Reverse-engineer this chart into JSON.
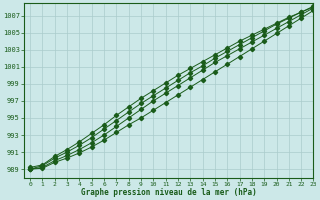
{
  "xlabel": "Graphe pression niveau de la mer (hPa)",
  "xlim": [
    -0.5,
    23
  ],
  "ylim": [
    988.0,
    1008.5
  ],
  "yticks": [
    989,
    991,
    993,
    995,
    997,
    999,
    1001,
    1003,
    1005,
    1007
  ],
  "xticks": [
    0,
    1,
    2,
    3,
    4,
    5,
    6,
    7,
    8,
    9,
    10,
    11,
    12,
    13,
    14,
    15,
    16,
    17,
    18,
    19,
    20,
    21,
    22,
    23
  ],
  "bg_color": "#cce8e8",
  "grid_color": "#aacccc",
  "line_color": "#1a5c1a",
  "line1_x": [
    0,
    1,
    2,
    3,
    4,
    5,
    6,
    7,
    8,
    9,
    10,
    11,
    12,
    13,
    14,
    15,
    16,
    17,
    18,
    19,
    20,
    21,
    22,
    23
  ],
  "line1_y": [
    989.0,
    989.1,
    989.8,
    990.3,
    990.9,
    991.6,
    992.4,
    993.3,
    994.2,
    995.0,
    995.9,
    996.8,
    997.7,
    998.6,
    999.5,
    1000.4,
    1001.3,
    1002.2,
    1003.1,
    1004.0,
    1004.9,
    1005.8,
    1006.7,
    1007.6
  ],
  "line2_x": [
    0,
    1,
    2,
    3,
    4,
    5,
    6,
    7,
    8,
    9,
    10,
    11,
    12,
    13,
    14,
    15,
    16,
    17,
    18,
    19,
    20,
    21,
    22,
    23
  ],
  "line2_y": [
    989.0,
    989.2,
    990.0,
    990.6,
    991.3,
    992.1,
    993.0,
    994.0,
    995.0,
    996.0,
    997.0,
    997.9,
    998.8,
    999.7,
    1000.6,
    1001.5,
    1002.3,
    1003.1,
    1003.9,
    1004.7,
    1005.5,
    1006.3,
    1007.1,
    1007.9
  ],
  "line3_x": [
    0,
    1,
    2,
    3,
    4,
    5,
    6,
    7,
    8,
    9,
    10,
    11,
    12,
    13,
    14,
    15,
    16,
    17,
    18,
    19,
    20,
    21,
    22,
    23
  ],
  "line3_y": [
    989.0,
    989.4,
    990.3,
    991.0,
    991.8,
    992.7,
    993.7,
    994.7,
    995.7,
    996.7,
    997.6,
    998.5,
    999.4,
    1000.3,
    1001.1,
    1002.0,
    1002.8,
    1003.6,
    1004.4,
    1005.2,
    1006.0,
    1006.7,
    1007.4,
    1008.1
  ],
  "line4_x": [
    0,
    1,
    2,
    3,
    4,
    5,
    6,
    7,
    8,
    9,
    10,
    11,
    12,
    13,
    14,
    15,
    16,
    17,
    18,
    19,
    20,
    21,
    22,
    23
  ],
  "line4_y": [
    989.2,
    989.5,
    990.5,
    991.3,
    992.2,
    993.2,
    994.2,
    995.3,
    996.3,
    997.3,
    998.2,
    999.1,
    1000.0,
    1000.8,
    1001.6,
    1002.4,
    1003.2,
    1004.0,
    1004.7,
    1005.4,
    1006.1,
    1006.8,
    1007.4,
    1008.0
  ]
}
